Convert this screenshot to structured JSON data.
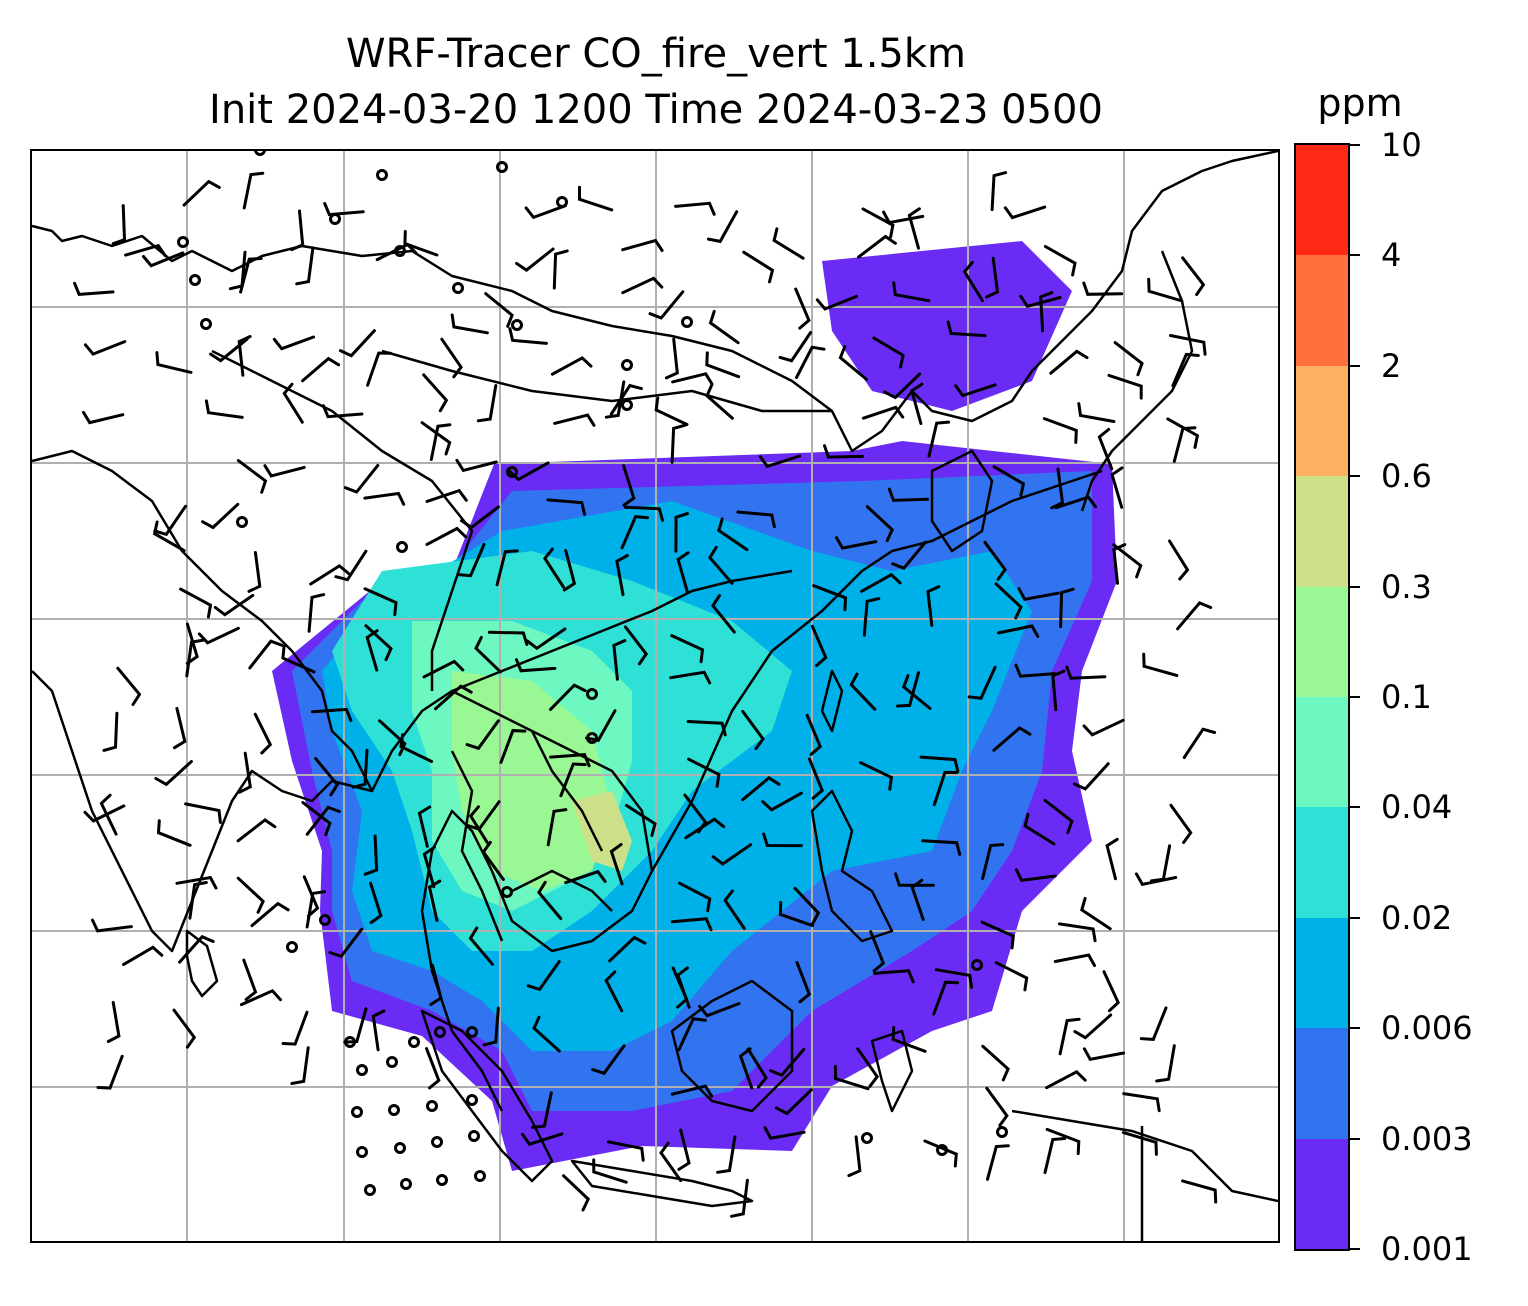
{
  "title": {
    "line1": "WRF-Tracer CO_fire_vert 1.5km",
    "line2": "Init 2024-03-20 1200 Time 2024-03-23 0500"
  },
  "colorbar": {
    "unit": "ppm",
    "levels": [
      "0.001",
      "0.003",
      "0.006",
      "0.02",
      "0.04",
      "0.1",
      "0.3",
      "0.6",
      "2",
      "4",
      "10"
    ],
    "colors": [
      "#6a2cf5",
      "#3274f0",
      "#00b0e8",
      "#2ee0d6",
      "#6cf8c0",
      "#9af894",
      "#cce08a",
      "#fdb060",
      "#ff703c",
      "#ff2a16"
    ]
  },
  "map": {
    "region": "South and Southeast Asia",
    "gridlines": true,
    "gridline_color": "#b0b0b0",
    "coastline_color": "#000000",
    "wind_barbs": true,
    "calm_markers": true
  }
}
